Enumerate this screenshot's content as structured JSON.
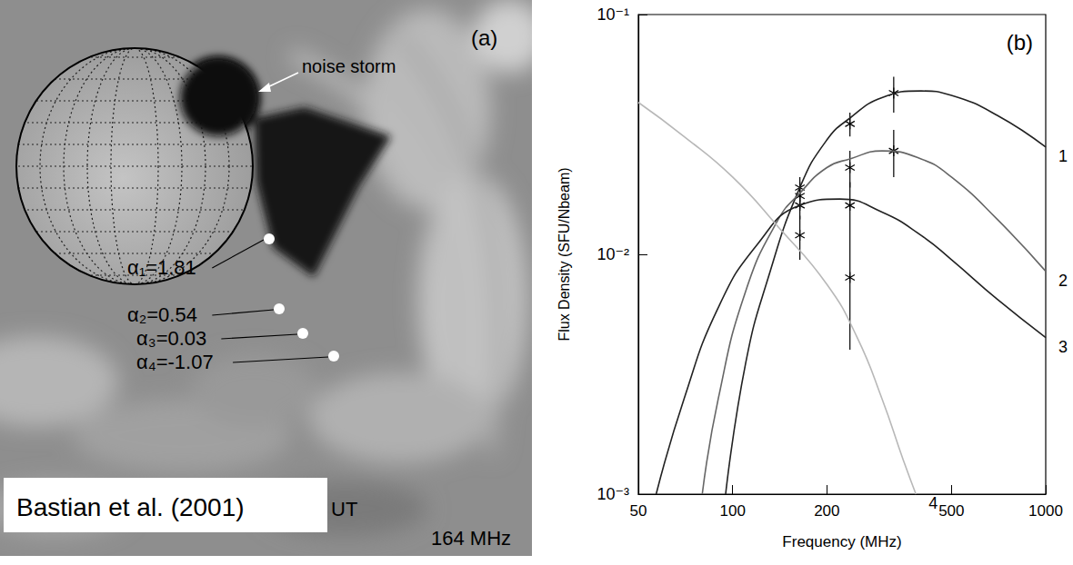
{
  "panels": [
    {
      "label": "(a)",
      "type": "image",
      "feature": "noise storm",
      "alphas": [
        "α₁=1.81",
        "α₂=0.54",
        "α₃=0.03",
        "α₄=-1.07"
      ],
      "time": "UT",
      "frequency": "164 MHz",
      "credit": "Bastian et al. (2001)"
    }
  ],
  "chart_data": {
    "type": "line",
    "panel_label": "(b)",
    "log": true,
    "grid": false,
    "legend": false,
    "x_label": "Frequency (MHz)",
    "y_label": "Flux Density (SFU/Nbeam)",
    "xlim": [
      50,
      1000
    ],
    "xticks": [
      50,
      100,
      200,
      500,
      1000
    ],
    "ylim": [
      0.001,
      0.1
    ],
    "yticks": [
      {
        "value": 0.001,
        "label": "10⁻³"
      },
      {
        "value": 0.01,
        "label": "10⁻²"
      },
      {
        "value": 0.1,
        "label": "10⁻¹"
      }
    ],
    "series": [
      {
        "name": "1",
        "color": "#222222",
        "line_style": "solid",
        "marker": "asterisk",
        "x": [
          95,
          110,
          130,
          164,
          200,
          237,
          300,
          400,
          500,
          700,
          1000
        ],
        "values": [
          0.001,
          0.0035,
          0.008,
          0.019,
          0.03,
          0.037,
          0.045,
          0.048,
          0.046,
          0.038,
          0.028
        ],
        "points": {
          "x": [
            164,
            237,
            327
          ],
          "values": [
            0.019,
            0.035,
            0.047
          ],
          "errors": [
            0.002,
            0.004,
            0.008
          ]
        }
      },
      {
        "name": "2",
        "color": "#666666",
        "line_style": "solid",
        "marker": "asterisk",
        "x": [
          80,
          90,
          110,
          140,
          164,
          200,
          237,
          300,
          400,
          500,
          700,
          1000
        ],
        "values": [
          0.001,
          0.0025,
          0.007,
          0.014,
          0.018,
          0.023,
          0.025,
          0.027,
          0.025,
          0.021,
          0.014,
          0.0085
        ],
        "points": {
          "x": [
            164,
            237,
            327
          ],
          "values": [
            0.0175,
            0.023,
            0.027
          ],
          "errors": [
            0.002,
            0.004,
            0.006
          ]
        }
      },
      {
        "name": "3",
        "color": "#222222",
        "line_style": "solid",
        "marker": "asterisk",
        "x": [
          57,
          70,
          90,
          120,
          164,
          220,
          300,
          400,
          500,
          700,
          1000
        ],
        "values": [
          0.001,
          0.0025,
          0.006,
          0.011,
          0.016,
          0.017,
          0.015,
          0.012,
          0.0095,
          0.0065,
          0.0045
        ],
        "points": {
          "x": [
            164,
            237
          ],
          "values": [
            0.016,
            0.016
          ],
          "errors": [
            0.002,
            0.004
          ]
        }
      },
      {
        "name": "4",
        "color": "#b8b8b8",
        "line_style": "solid",
        "marker": "asterisk",
        "x": [
          50,
          70,
          100,
          140,
          200,
          250,
          300,
          350,
          385
        ],
        "values": [
          0.043,
          0.031,
          0.021,
          0.013,
          0.0075,
          0.0045,
          0.0025,
          0.0014,
          0.001
        ],
        "points": {
          "x": [
            164,
            237
          ],
          "values": [
            0.012,
            0.008
          ],
          "errors": [
            0.0025,
            0.004
          ]
        }
      }
    ]
  }
}
